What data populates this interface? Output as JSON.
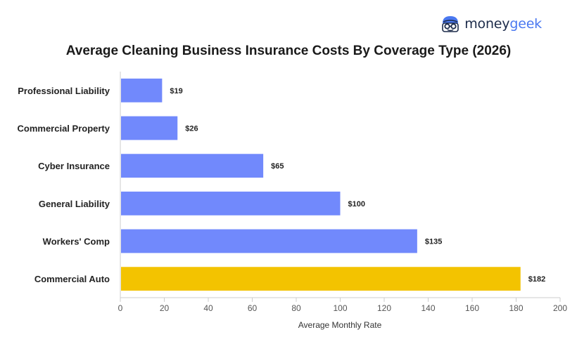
{
  "brand": {
    "name_part1": "money",
    "name_part2": "geek",
    "logo_icon": "moneygeek-mascot-icon",
    "colors": {
      "dark": "#1c2b4a",
      "accent": "#4a78f0"
    }
  },
  "chart_data": {
    "type": "bar",
    "orientation": "horizontal",
    "title": "Average Cleaning Business Insurance Costs By Coverage Type (2026)",
    "xlabel": "Average Monthly Rate",
    "ylabel": "",
    "categories": [
      "Professional Liability",
      "Commercial Property",
      "Cyber Insurance",
      "General Liability",
      "Workers' Comp",
      "Commercial Auto"
    ],
    "values": [
      19,
      26,
      65,
      100,
      135,
      182
    ],
    "data_labels": [
      "$19",
      "$26",
      "$65",
      "$100",
      "$135",
      "$182"
    ],
    "colors": [
      "#7189fc",
      "#7189fc",
      "#7189fc",
      "#7189fc",
      "#7189fc",
      "#f3c300"
    ],
    "xlim": [
      0,
      200
    ],
    "xticks": [
      0,
      20,
      40,
      60,
      80,
      100,
      120,
      140,
      160,
      180,
      200
    ],
    "grid": false,
    "legend": "none"
  }
}
